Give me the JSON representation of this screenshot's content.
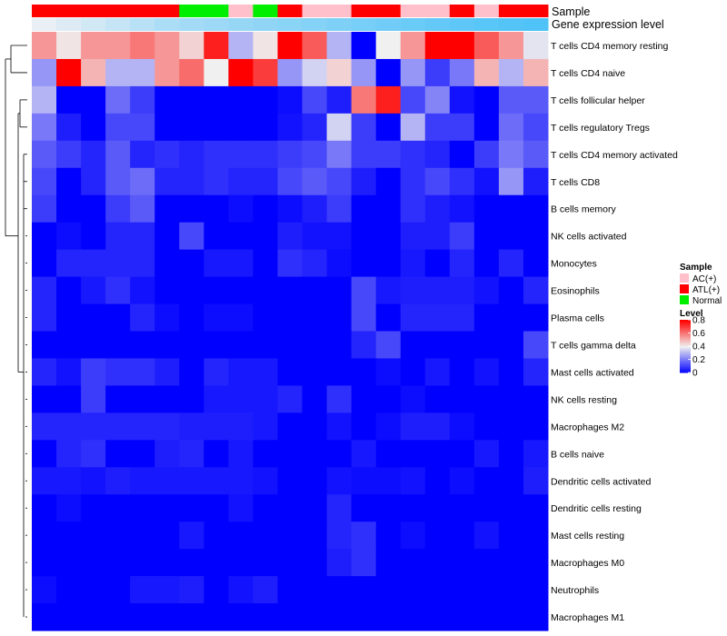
{
  "chart_data": {
    "type": "heatmap",
    "annotation_tracks": [
      {
        "name": "Sample",
        "values": [
          "ATL(+)",
          "ATL(+)",
          "ATL(+)",
          "ATL(+)",
          "ATL(+)",
          "ATL(+)",
          "Normal",
          "Normal",
          "AC(+)",
          "Normal",
          "ATL(+)",
          "AC(+)",
          "AC(+)",
          "ATL(+)",
          "ATL(+)",
          "AC(+)",
          "AC(+)",
          "ATL(+)",
          "AC(+)",
          "ATL(+)",
          "ATL(+)"
        ]
      },
      {
        "name": "Gene expression level",
        "values": [
          0.0,
          0.08,
          0.16,
          0.24,
          0.32,
          0.4,
          0.46,
          0.5,
          0.54,
          0.58,
          0.62,
          0.66,
          0.7,
          0.74,
          0.78,
          0.82,
          0.86,
          0.9,
          0.94,
          0.97,
          1.0
        ]
      }
    ],
    "rows": [
      "T cells CD4 memory resting",
      "T cells CD4 naive",
      "T cells follicular helper",
      "T cells regulatory  Tregs",
      "T cells CD4 memory activated",
      "T cells CD8",
      "B cells memory",
      "NK cells activated",
      "Monocytes",
      "Eosinophils",
      "Plasma cells",
      "T cells gamma delta",
      "Mast cells activated",
      "NK cells resting",
      "Macrophages M2",
      "B cells naive",
      "Dendritic cells activated",
      "Dendritic cells resting",
      "Mast cells resting",
      "Macrophages M0",
      "Neutrophils",
      "Macrophages M1"
    ],
    "values": [
      [
        0.55,
        0.42,
        0.55,
        0.55,
        0.6,
        0.55,
        0.45,
        0.75,
        0.3,
        0.42,
        0.8,
        0.65,
        0.3,
        0.0,
        0.4,
        0.55,
        0.8,
        0.8,
        0.65,
        0.55,
        0.38
      ],
      [
        0.25,
        0.8,
        0.5,
        0.3,
        0.3,
        0.55,
        0.62,
        0.4,
        0.8,
        0.7,
        0.25,
        0.35,
        0.45,
        0.25,
        0.0,
        0.25,
        0.1,
        0.2,
        0.5,
        0.3,
        0.5
      ],
      [
        0.3,
        0.0,
        0.0,
        0.18,
        0.1,
        0.0,
        0.0,
        0.0,
        0.0,
        0.0,
        0.02,
        0.12,
        0.05,
        0.6,
        0.75,
        0.12,
        0.22,
        0.03,
        0.0,
        0.15,
        0.15
      ],
      [
        0.2,
        0.05,
        0.0,
        0.12,
        0.12,
        0.0,
        0.0,
        0.0,
        0.0,
        0.0,
        0.03,
        0.06,
        0.35,
        0.1,
        0.0,
        0.3,
        0.1,
        0.1,
        0.0,
        0.18,
        0.12
      ],
      [
        0.15,
        0.1,
        0.06,
        0.15,
        0.06,
        0.08,
        0.06,
        0.08,
        0.08,
        0.08,
        0.1,
        0.12,
        0.2,
        0.1,
        0.1,
        0.08,
        0.06,
        0.0,
        0.1,
        0.2,
        0.15
      ],
      [
        0.12,
        0.0,
        0.06,
        0.15,
        0.18,
        0.06,
        0.06,
        0.08,
        0.06,
        0.06,
        0.12,
        0.15,
        0.12,
        0.05,
        0.0,
        0.08,
        0.12,
        0.08,
        0.03,
        0.25,
        0.05
      ],
      [
        0.1,
        0.0,
        0.0,
        0.1,
        0.15,
        0.0,
        0.0,
        0.0,
        0.02,
        0.0,
        0.02,
        0.05,
        0.1,
        0.0,
        0.0,
        0.08,
        0.05,
        0.03,
        0.0,
        0.0,
        0.0
      ],
      [
        0.0,
        0.02,
        0.0,
        0.06,
        0.06,
        0.0,
        0.12,
        0.0,
        0.0,
        0.0,
        0.05,
        0.03,
        0.03,
        0.0,
        0.0,
        0.05,
        0.05,
        0.1,
        0.0,
        0.0,
        0.0
      ],
      [
        0.0,
        0.06,
        0.06,
        0.06,
        0.06,
        0.0,
        0.0,
        0.04,
        0.04,
        0.0,
        0.08,
        0.06,
        0.02,
        0.0,
        0.0,
        0.04,
        0.0,
        0.06,
        0.0,
        0.06,
        0.0
      ],
      [
        0.06,
        0.0,
        0.04,
        0.08,
        0.03,
        0.0,
        0.0,
        0.0,
        0.0,
        0.0,
        0.0,
        0.0,
        0.0,
        0.12,
        0.04,
        0.05,
        0.05,
        0.05,
        0.03,
        0.0,
        0.06
      ],
      [
        0.06,
        0.0,
        0.0,
        0.0,
        0.06,
        0.02,
        0.0,
        0.02,
        0.02,
        0.0,
        0.0,
        0.0,
        0.0,
        0.12,
        0.0,
        0.06,
        0.06,
        0.06,
        0.0,
        0.0,
        0.0
      ],
      [
        0.0,
        0.0,
        0.0,
        0.0,
        0.0,
        0.0,
        0.0,
        0.0,
        0.0,
        0.0,
        0.0,
        0.0,
        0.0,
        0.06,
        0.12,
        0.0,
        0.0,
        0.0,
        0.0,
        0.0,
        0.12
      ],
      [
        0.06,
        0.03,
        0.1,
        0.08,
        0.08,
        0.05,
        0.0,
        0.06,
        0.04,
        0.04,
        0.0,
        0.0,
        0.0,
        0.0,
        0.02,
        0.0,
        0.04,
        0.0,
        0.03,
        0.0,
        0.06
      ],
      [
        0.0,
        0.0,
        0.1,
        0.0,
        0.0,
        0.0,
        0.0,
        0.04,
        0.04,
        0.04,
        0.06,
        0.0,
        0.08,
        0.0,
        0.0,
        0.02,
        0.0,
        0.0,
        0.0,
        0.0,
        0.0
      ],
      [
        0.06,
        0.06,
        0.06,
        0.06,
        0.06,
        0.06,
        0.05,
        0.05,
        0.05,
        0.04,
        0.0,
        0.0,
        0.03,
        0.0,
        0.02,
        0.05,
        0.05,
        0.02,
        0.0,
        0.0,
        0.0
      ],
      [
        0.0,
        0.06,
        0.08,
        0.0,
        0.0,
        0.05,
        0.06,
        0.0,
        0.04,
        0.0,
        0.0,
        0.0,
        0.0,
        0.04,
        0.0,
        0.0,
        0.0,
        0.0,
        0.04,
        0.0,
        0.04
      ],
      [
        0.04,
        0.04,
        0.03,
        0.05,
        0.04,
        0.04,
        0.04,
        0.04,
        0.04,
        0.03,
        0.0,
        0.0,
        0.03,
        0.02,
        0.02,
        0.03,
        0.0,
        0.02,
        0.0,
        0.0,
        0.05
      ],
      [
        0.0,
        0.02,
        0.0,
        0.0,
        0.0,
        0.0,
        0.0,
        0.0,
        0.03,
        0.0,
        0.0,
        0.0,
        0.06,
        0.0,
        0.0,
        0.0,
        0.0,
        0.0,
        0.0,
        0.0,
        0.0
      ],
      [
        0.0,
        0.0,
        0.0,
        0.0,
        0.0,
        0.0,
        0.04,
        0.0,
        0.0,
        0.0,
        0.0,
        0.0,
        0.06,
        0.08,
        0.0,
        0.02,
        0.0,
        0.0,
        0.03,
        0.0,
        0.0
      ],
      [
        0.0,
        0.0,
        0.0,
        0.0,
        0.0,
        0.0,
        0.0,
        0.0,
        0.0,
        0.0,
        0.0,
        0.0,
        0.05,
        0.08,
        0.0,
        0.0,
        0.0,
        0.0,
        0.0,
        0.0,
        0.0
      ],
      [
        0.02,
        0.0,
        0.0,
        0.0,
        0.04,
        0.04,
        0.05,
        0.0,
        0.03,
        0.05,
        0.0,
        0.0,
        0.0,
        0.0,
        0.0,
        0.0,
        0.0,
        0.0,
        0.0,
        0.0,
        0.0
      ],
      [
        0.0,
        0.0,
        0.0,
        0.0,
        0.0,
        0.0,
        0.0,
        0.0,
        0.0,
        0.0,
        0.0,
        0.0,
        0.0,
        0.0,
        0.0,
        0.0,
        0.0,
        0.0,
        0.0,
        0.0,
        0.0
      ]
    ],
    "legends": {
      "sample": {
        "title": "Sample",
        "items": [
          {
            "label": "AC(+)",
            "color": "#ffc0cb"
          },
          {
            "label": "ATL(+)",
            "color": "#ff0000"
          },
          {
            "label": "Normal",
            "color": "#00ee00"
          }
        ]
      },
      "level": {
        "title": "Level",
        "ticks": [
          "0.8",
          "0.6",
          "0.4",
          "0.2",
          "0"
        ],
        "tick_values": [
          0.8,
          0.6,
          0.4,
          0.2,
          0.0
        ],
        "range": [
          0,
          0.8
        ]
      }
    },
    "colors": {
      "low": "#0000ff",
      "mid": "#f0f0f0",
      "high": "#ff0000",
      "gene_low": "#eaeff5",
      "gene_high": "#4fc3f7"
    }
  }
}
